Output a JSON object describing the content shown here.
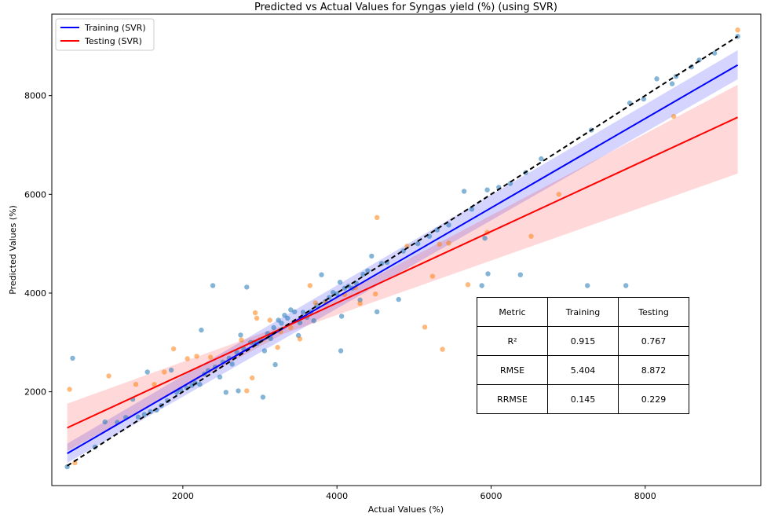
{
  "chart_data": {
    "type": "scatter",
    "title": "Predicted vs Actual Values for Syngas yield (%) (using SVR)",
    "xlabel": "Actual Values (%)",
    "ylabel": "Predicted Values (%)",
    "xlim": [
      300,
      9500
    ],
    "ylim": [
      100,
      9650
    ],
    "xticks": [
      2000,
      4000,
      6000,
      8000
    ],
    "yticks": [
      2000,
      4000,
      6000,
      8000
    ],
    "legend": {
      "position": "top-left",
      "entries": [
        "Training (SVR)",
        "Testing (SVR)"
      ]
    },
    "series": [
      {
        "name": "Training (SVR)",
        "fit_line": {
          "x": [
            500,
            9200
          ],
          "y": [
            750,
            8620
          ]
        },
        "band_upper": [
          [
            500,
            950
          ],
          [
            9200,
            8920
          ]
        ],
        "band_lower": [
          [
            500,
            560
          ],
          [
            9200,
            8330
          ]
        ],
        "points": [
          [
            500,
            480
          ],
          [
            570,
            2680
          ],
          [
            860,
            880
          ],
          [
            990,
            1390
          ],
          [
            1150,
            1380
          ],
          [
            1260,
            1480
          ],
          [
            1350,
            1850
          ],
          [
            1420,
            1490
          ],
          [
            1500,
            1540
          ],
          [
            1540,
            2400
          ],
          [
            1580,
            1600
          ],
          [
            1660,
            1630
          ],
          [
            1720,
            1720
          ],
          [
            1800,
            1820
          ],
          [
            1850,
            2440
          ],
          [
            1920,
            1990
          ],
          [
            1970,
            2040
          ],
          [
            2050,
            2080
          ],
          [
            2120,
            2130
          ],
          [
            2160,
            2180
          ],
          [
            2220,
            2150
          ],
          [
            2240,
            3250
          ],
          [
            2280,
            2360
          ],
          [
            2330,
            2430
          ],
          [
            2390,
            4150
          ],
          [
            2420,
            2500
          ],
          [
            2480,
            2300
          ],
          [
            2520,
            2600
          ],
          [
            2560,
            1990
          ],
          [
            2600,
            2680
          ],
          [
            2640,
            2560
          ],
          [
            2700,
            2800
          ],
          [
            2720,
            2020
          ],
          [
            2750,
            3150
          ],
          [
            2790,
            2870
          ],
          [
            2830,
            4120
          ],
          [
            2880,
            3000
          ],
          [
            2920,
            3000
          ],
          [
            2960,
            2980
          ],
          [
            3000,
            3050
          ],
          [
            3040,
            1890
          ],
          [
            3060,
            2830
          ],
          [
            3100,
            3180
          ],
          [
            3140,
            3080
          ],
          [
            3180,
            3300
          ],
          [
            3200,
            2550
          ],
          [
            3240,
            3450
          ],
          [
            3280,
            3390
          ],
          [
            3320,
            3550
          ],
          [
            3360,
            3490
          ],
          [
            3400,
            3660
          ],
          [
            3450,
            3620
          ],
          [
            3500,
            3140
          ],
          [
            3520,
            3400
          ],
          [
            3560,
            3610
          ],
          [
            3610,
            3510
          ],
          [
            3660,
            3620
          ],
          [
            3700,
            3440
          ],
          [
            3740,
            3750
          ],
          [
            3800,
            4370
          ],
          [
            3850,
            3830
          ],
          [
            3900,
            3910
          ],
          [
            3950,
            4010
          ],
          [
            4000,
            3980
          ],
          [
            4040,
            4220
          ],
          [
            4050,
            2830
          ],
          [
            4060,
            3530
          ],
          [
            4100,
            4100
          ],
          [
            4150,
            4140
          ],
          [
            4200,
            4100
          ],
          [
            4250,
            4200
          ],
          [
            4300,
            3860
          ],
          [
            4340,
            4380
          ],
          [
            4400,
            4450
          ],
          [
            4450,
            4750
          ],
          [
            4520,
            3620
          ],
          [
            4580,
            4600
          ],
          [
            4650,
            4620
          ],
          [
            4800,
            3870
          ],
          [
            4860,
            4850
          ],
          [
            5050,
            5000
          ],
          [
            5200,
            5150
          ],
          [
            5300,
            5280
          ],
          [
            5450,
            5380
          ],
          [
            5650,
            6060
          ],
          [
            5750,
            5700
          ],
          [
            5880,
            4150
          ],
          [
            5920,
            5110
          ],
          [
            5950,
            6090
          ],
          [
            5960,
            4390
          ],
          [
            6100,
            6140
          ],
          [
            6250,
            6220
          ],
          [
            6380,
            4370
          ],
          [
            6450,
            6440
          ],
          [
            6650,
            6720
          ],
          [
            7250,
            4150
          ],
          [
            7300,
            7300
          ],
          [
            7750,
            4150
          ],
          [
            7800,
            7850
          ],
          [
            7980,
            7930
          ],
          [
            8150,
            8340
          ],
          [
            8350,
            8240
          ],
          [
            8400,
            8390
          ],
          [
            8600,
            8580
          ],
          [
            8700,
            8720
          ],
          [
            8900,
            8860
          ],
          [
            9200,
            9200
          ]
        ]
      },
      {
        "name": "Testing (SVR)",
        "fit_line": {
          "x": [
            500,
            9200
          ],
          "y": [
            1270,
            7560
          ]
        },
        "band_upper": [
          [
            500,
            1760
          ],
          [
            3300,
            3340
          ],
          [
            9200,
            8220
          ]
        ],
        "band_lower": [
          [
            500,
            800
          ],
          [
            3300,
            3170
          ],
          [
            9200,
            6420
          ]
        ],
        "points": [
          [
            530,
            2050
          ],
          [
            600,
            560
          ],
          [
            1040,
            2320
          ],
          [
            1390,
            2150
          ],
          [
            1630,
            2150
          ],
          [
            1760,
            2400
          ],
          [
            1880,
            2870
          ],
          [
            2060,
            2670
          ],
          [
            2180,
            2720
          ],
          [
            2360,
            2700
          ],
          [
            2760,
            3050
          ],
          [
            2830,
            2020
          ],
          [
            2900,
            2280
          ],
          [
            2940,
            3600
          ],
          [
            2960,
            3490
          ],
          [
            3050,
            3070
          ],
          [
            3130,
            3450
          ],
          [
            3230,
            2900
          ],
          [
            3270,
            3220
          ],
          [
            3400,
            3300
          ],
          [
            3520,
            3070
          ],
          [
            3650,
            4150
          ],
          [
            3720,
            3800
          ],
          [
            3860,
            3810
          ],
          [
            4100,
            3970
          ],
          [
            4240,
            4110
          ],
          [
            4300,
            3790
          ],
          [
            4500,
            3980
          ],
          [
            4520,
            5530
          ],
          [
            4910,
            4950
          ],
          [
            5140,
            3310
          ],
          [
            5240,
            4340
          ],
          [
            5330,
            4990
          ],
          [
            5370,
            2860
          ],
          [
            5450,
            5010
          ],
          [
            5700,
            4170
          ],
          [
            5950,
            5230
          ],
          [
            6230,
            2920
          ],
          [
            6520,
            5150
          ],
          [
            6880,
            6000
          ],
          [
            8370,
            7580
          ],
          [
            9200,
            9330
          ]
        ]
      }
    ],
    "identity_line": {
      "x": [
        500,
        9200
      ],
      "y": [
        500,
        9200
      ]
    },
    "table": {
      "header": [
        "Metric",
        "Training",
        "Testing"
      ],
      "rows": [
        [
          "R²",
          "0.915",
          "0.767"
        ],
        [
          "RMSE",
          "5.404",
          "8.872"
        ],
        [
          "RRMSE",
          "0.145",
          "0.229"
        ]
      ]
    },
    "colors": {
      "training_point": "#1f77b4",
      "testing_point": "#ff7f0e",
      "training_line": "#0000ff",
      "testing_line": "#ff0000",
      "identity_line": "#000000"
    }
  }
}
